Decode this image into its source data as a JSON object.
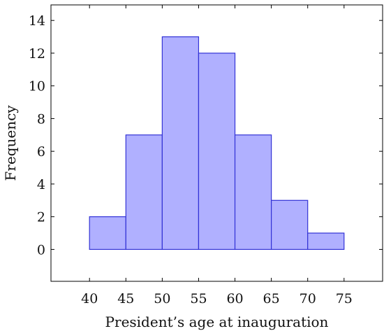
{
  "chart_data": {
    "type": "bar",
    "title": "",
    "xlabel": "President’s age at inauguration",
    "ylabel": "Frequency",
    "bins": [
      {
        "from": 40,
        "to": 45,
        "value": 2
      },
      {
        "from": 45,
        "to": 50,
        "value": 7
      },
      {
        "from": 50,
        "to": 55,
        "value": 13
      },
      {
        "from": 55,
        "to": 60,
        "value": 12
      },
      {
        "from": 60,
        "to": 65,
        "value": 7
      },
      {
        "from": 65,
        "to": 70,
        "value": 3
      },
      {
        "from": 70,
        "to": 75,
        "value": 1
      }
    ],
    "xticks": [
      40,
      45,
      50,
      55,
      60,
      65,
      70,
      75
    ],
    "yticks": [
      0,
      2,
      4,
      6,
      8,
      10,
      12,
      14
    ],
    "xlim": [
      34.7,
      80.3
    ],
    "ylim": [
      -1.95,
      14.95
    ],
    "grid": false,
    "bar_fill_color": "#b0b0ff",
    "bar_edge_color": "#3333d6"
  }
}
